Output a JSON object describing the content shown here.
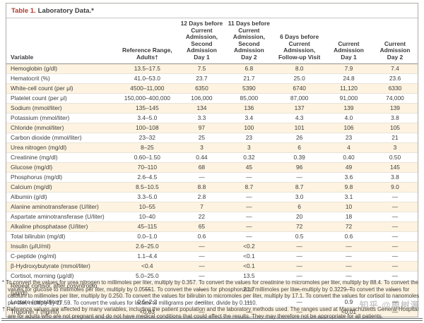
{
  "title": {
    "prefix": "Table 1.",
    "text": "Laboratory Data.*"
  },
  "colors": {
    "accent_red": "#b5372b",
    "row_stripe": "#fdf3e0"
  },
  "watermark_text": "知乎 @周树源",
  "table": {
    "columns": [
      "Variable",
      "Reference Range,\nAdults†",
      "12 Days before\nCurrent Admission,\nSecond Admission\nDay 1",
      "11 Days before\nCurrent Admission,\nSecond Admission\nDay 2",
      "6 Days before\nCurrent Admission,\nFollow-up Visit",
      "Current Admission\nDay 1",
      "Current Admission\nDay 2"
    ],
    "rows": [
      {
        "variable": "Hemoglobin (g/dl)",
        "values": [
          "13.5–17.5",
          "7.5",
          "6.8",
          "8.0",
          "7.9",
          "7.4"
        ]
      },
      {
        "variable": "Hematocrit (%)",
        "values": [
          "41.0–53.0",
          "23.7",
          "21.7",
          "25.0",
          "24.8",
          "23.6"
        ]
      },
      {
        "variable": "White-cell count (per μl)",
        "values": [
          "4500–11,000",
          "6350",
          "5390",
          "6740",
          "11,120",
          "6330"
        ]
      },
      {
        "variable": "Platelet count (per μl)",
        "values": [
          "150,000–400,000",
          "106,000",
          "85,000",
          "87,000",
          "91,000",
          "74,000"
        ]
      },
      {
        "variable": "Sodium (mmol/liter)",
        "values": [
          "135–145",
          "134",
          "136",
          "137",
          "139",
          "139"
        ]
      },
      {
        "variable": "Potassium (mmol/liter)",
        "values": [
          "3.4–5.0",
          "3.3",
          "3.4",
          "4.3",
          "4.0",
          "3.8"
        ]
      },
      {
        "variable": "Chloride (mmol/liter)",
        "values": [
          "100–108",
          "97",
          "100",
          "101",
          "106",
          "105"
        ]
      },
      {
        "variable": "Carbon dioxide (mmol/liter)",
        "values": [
          "23–32",
          "25",
          "23",
          "26",
          "23",
          "21"
        ]
      },
      {
        "variable": "Urea nitrogen (mg/dl)",
        "values": [
          "8–25",
          "3",
          "3",
          "6",
          "4",
          "3"
        ]
      },
      {
        "variable": "Creatinine (mg/dl)",
        "values": [
          "0.60–1.50",
          "0.44",
          "0.32",
          "0.39",
          "0.40",
          "0.50"
        ]
      },
      {
        "variable": "Glucose (mg/dl)",
        "values": [
          "70–110",
          "68",
          "45",
          "96",
          "49",
          "145"
        ]
      },
      {
        "variable": "Phosphorus (mg/dl)",
        "values": [
          "2.6–4.5",
          "—",
          "—",
          "—",
          "3.6",
          "3.8"
        ]
      },
      {
        "variable": "Calcium (mg/dl)",
        "values": [
          "8.5–10.5",
          "8.8",
          "8.7",
          "8.7",
          "9.8",
          "9.0"
        ]
      },
      {
        "variable": "Albumin (g/dl)",
        "values": [
          "3.3–5.0",
          "2.8",
          "—",
          "3.0",
          "3.1",
          "—"
        ]
      },
      {
        "variable": "Alanine aminotransferase (U/liter)",
        "values": [
          "10–55",
          "7",
          "—",
          "6",
          "10",
          "—"
        ]
      },
      {
        "variable": "Aspartate aminotransferase (U/liter)",
        "values": [
          "10–40",
          "22",
          "—",
          "20",
          "18",
          "—"
        ]
      },
      {
        "variable": "Alkaline phosphatase (U/liter)",
        "values": [
          "45–115",
          "65",
          "—",
          "72",
          "72",
          "—"
        ]
      },
      {
        "variable": "Total bilirubin (mg/dl)",
        "values": [
          "0.0–1.0",
          "0.6",
          "—",
          "0.5",
          "0.6",
          "—"
        ]
      },
      {
        "variable": "Insulin (μIU/ml)",
        "values": [
          "2.6–25.0",
          "—",
          "<0.2",
          "—",
          "—",
          "—"
        ]
      },
      {
        "variable": "C-peptide (ng/ml)",
        "values": [
          "1.1–4.4",
          "—",
          "<0.1",
          "—",
          "—",
          "—"
        ]
      },
      {
        "variable": "β-Hydroxybutyrate (mmol/liter)",
        "values": [
          "<0.4",
          "—",
          "<0.1",
          "—",
          "—",
          "—"
        ]
      },
      {
        "variable": "Cortisol, morning (μg/dl)",
        "values": [
          "5.0–25.0",
          "—",
          "13.5",
          "—",
          "—",
          "—"
        ]
      },
      {
        "variable": "Repeat cortisol, after cosyntropin (μg/dl)",
        "values": [
          "—",
          "—",
          "21.7",
          "—",
          "—",
          "—"
        ]
      },
      {
        "variable": "Lactate (mmol/liter)",
        "values": [
          "0.5–2.2",
          "—",
          "—",
          "—",
          "0.9",
          "—"
        ]
      },
      {
        "variable": "Troponin T (ng/ml)",
        "values": [
          "<0.03",
          "—",
          "—",
          "—",
          "<0.01",
          "—"
        ]
      }
    ]
  },
  "footnotes": [
    {
      "marker": "*",
      "text": "To convert the values for urea nitrogen to millimoles per liter, multiply by 0.357. To convert the values for creatinine to micromoles per liter, multiply by 88.4. To convert the values for glucose to millimoles per liter, multiply by 0.05551. To convert the values for phosphorus to millimoles per liter, multiply by 0.3229. To convert the values for calcium to millimoles per liter, multiply by 0.250. To convert the values for bilirubin to micromoles per liter, multiply by 17.1. To convert the values for cortisol to nanomoles per liter, multiply by 27.59. To convert the values for lactate to milligrams per deciliter, divide by 0.1110."
    },
    {
      "marker": "†",
      "text": "Reference values are affected by many variables, including the patient population and the laboratory methods used. The ranges used at Massachusetts General Hospital are for adults who are not pregnant and do not have medical conditions that could affect the results. They may therefore not be appropriate for all patients."
    }
  ]
}
